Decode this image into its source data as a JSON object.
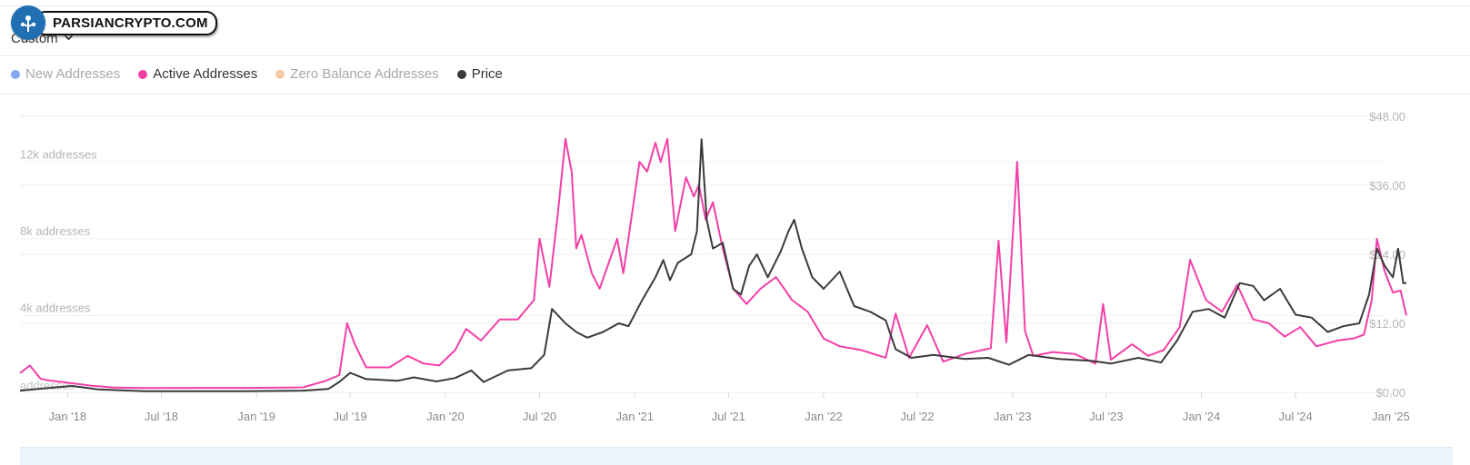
{
  "watermark": {
    "text": "PARSIANCRYPTO.COM"
  },
  "controls": {
    "range_label": "Custom"
  },
  "legend": [
    {
      "label": "New Addresses",
      "color": "#7b9cf0",
      "enabled": false
    },
    {
      "label": "Active Addresses",
      "color": "#f43fa6",
      "enabled": true
    },
    {
      "label": "Zero Balance Addresses",
      "color": "#f6c39a",
      "enabled": false
    },
    {
      "label": "Price",
      "color": "#3a3a3a",
      "enabled": true
    }
  ],
  "chart_data": {
    "type": "line",
    "x_ticks": [
      "Jan '18",
      "Jul '18",
      "Jan '19",
      "Jul '19",
      "Jan '20",
      "Jul '20",
      "Jan '21",
      "Jul '21",
      "Jan '22",
      "Jul '22",
      "Jan '23",
      "Jul '23",
      "Jan '24",
      "Jul '24",
      "Jan '25"
    ],
    "x_start": "2017-10-01",
    "x_end": "2025-01-31",
    "y_left": {
      "ticks": [
        4000,
        8000,
        12000
      ],
      "tick_labels": [
        "4k addresses",
        "8k addresses",
        "12k addresses"
      ],
      "bottom_label": "addresses",
      "range": [
        0,
        14000
      ]
    },
    "y_right": {
      "ticks": [
        0,
        12,
        24,
        36,
        48
      ],
      "tick_labels": [
        "$0.00",
        "$12.00",
        "$24.00",
        "$36.00",
        "$48.00"
      ],
      "range": [
        0,
        48
      ]
    },
    "series": [
      {
        "name": "Active Addresses",
        "axis": "left",
        "color": "#f43fa6",
        "points": [
          [
            "2017-10-01",
            1000
          ],
          [
            "2017-10-20",
            1400
          ],
          [
            "2017-11-10",
            700
          ],
          [
            "2017-12-01",
            600
          ],
          [
            "2018-01-01",
            500
          ],
          [
            "2018-02-15",
            350
          ],
          [
            "2018-04-01",
            250
          ],
          [
            "2018-06-01",
            220
          ],
          [
            "2018-09-01",
            230
          ],
          [
            "2018-12-01",
            230
          ],
          [
            "2019-02-01",
            240
          ],
          [
            "2019-04-01",
            260
          ],
          [
            "2019-05-15",
            600
          ],
          [
            "2019-06-10",
            900
          ],
          [
            "2019-06-25",
            3600
          ],
          [
            "2019-07-10",
            2500
          ],
          [
            "2019-08-01",
            1300
          ],
          [
            "2019-09-15",
            1300
          ],
          [
            "2019-10-20",
            1900
          ],
          [
            "2019-11-20",
            1500
          ],
          [
            "2019-12-20",
            1400
          ],
          [
            "2020-01-20",
            2200
          ],
          [
            "2020-02-10",
            3300
          ],
          [
            "2020-03-10",
            2700
          ],
          [
            "2020-04-15",
            3800
          ],
          [
            "2020-05-20",
            3800
          ],
          [
            "2020-06-20",
            4800
          ],
          [
            "2020-07-01",
            8000
          ],
          [
            "2020-07-20",
            5500
          ],
          [
            "2020-08-05",
            9200
          ],
          [
            "2020-08-20",
            13200
          ],
          [
            "2020-09-01",
            11500
          ],
          [
            "2020-09-10",
            7500
          ],
          [
            "2020-09-20",
            8200
          ],
          [
            "2020-10-10",
            6200
          ],
          [
            "2020-10-25",
            5400
          ],
          [
            "2020-11-15",
            7000
          ],
          [
            "2020-11-28",
            8000
          ],
          [
            "2020-12-10",
            6200
          ],
          [
            "2020-12-25",
            9000
          ],
          [
            "2021-01-10",
            12000
          ],
          [
            "2021-01-25",
            11500
          ],
          [
            "2021-02-10",
            13000
          ],
          [
            "2021-02-20",
            12000
          ],
          [
            "2021-03-05",
            13200
          ],
          [
            "2021-03-20",
            8400
          ],
          [
            "2021-04-10",
            11200
          ],
          [
            "2021-04-25",
            10200
          ],
          [
            "2021-05-05",
            10800
          ],
          [
            "2021-05-18",
            9000
          ],
          [
            "2021-06-01",
            9900
          ],
          [
            "2021-06-20",
            7500
          ],
          [
            "2021-07-10",
            5400
          ],
          [
            "2021-08-05",
            4600
          ],
          [
            "2021-09-01",
            5400
          ],
          [
            "2021-10-01",
            6000
          ],
          [
            "2021-11-01",
            4800
          ],
          [
            "2021-12-01",
            4200
          ],
          [
            "2022-01-01",
            2800
          ],
          [
            "2022-02-01",
            2400
          ],
          [
            "2022-03-15",
            2200
          ],
          [
            "2022-05-01",
            1800
          ],
          [
            "2022-05-20",
            4100
          ],
          [
            "2022-06-15",
            1800
          ],
          [
            "2022-07-20",
            3500
          ],
          [
            "2022-08-20",
            1600
          ],
          [
            "2022-10-01",
            2000
          ],
          [
            "2022-11-20",
            2300
          ],
          [
            "2022-12-05",
            7900
          ],
          [
            "2022-12-20",
            2600
          ],
          [
            "2023-01-10",
            12000
          ],
          [
            "2023-01-25",
            3200
          ],
          [
            "2023-02-10",
            1900
          ],
          [
            "2023-03-20",
            2100
          ],
          [
            "2023-05-01",
            2000
          ],
          [
            "2023-06-10",
            1500
          ],
          [
            "2023-06-25",
            4600
          ],
          [
            "2023-07-10",
            1700
          ],
          [
            "2023-08-20",
            2500
          ],
          [
            "2023-09-20",
            1900
          ],
          [
            "2023-10-20",
            2200
          ],
          [
            "2023-11-20",
            3400
          ],
          [
            "2023-12-10",
            6900
          ],
          [
            "2024-01-10",
            4800
          ],
          [
            "2024-02-10",
            4200
          ],
          [
            "2024-03-10",
            5600
          ],
          [
            "2024-04-10",
            3800
          ],
          [
            "2024-05-10",
            3600
          ],
          [
            "2024-06-10",
            2900
          ],
          [
            "2024-07-10",
            3400
          ],
          [
            "2024-08-10",
            2400
          ],
          [
            "2024-09-20",
            2700
          ],
          [
            "2024-10-20",
            2800
          ],
          [
            "2024-11-10",
            3000
          ],
          [
            "2024-11-25",
            4800
          ],
          [
            "2024-12-05",
            8000
          ],
          [
            "2024-12-20",
            6300
          ],
          [
            "2025-01-05",
            5200
          ],
          [
            "2025-01-20",
            5300
          ],
          [
            "2025-01-31",
            4000
          ]
        ]
      },
      {
        "name": "Price",
        "axis": "right",
        "color": "#3a3a3a",
        "points": [
          [
            "2017-10-01",
            0.3
          ],
          [
            "2017-12-01",
            0.8
          ],
          [
            "2018-01-10",
            1.1
          ],
          [
            "2018-03-01",
            0.5
          ],
          [
            "2018-06-01",
            0.2
          ],
          [
            "2018-12-01",
            0.2
          ],
          [
            "2019-04-01",
            0.3
          ],
          [
            "2019-05-20",
            0.6
          ],
          [
            "2019-06-10",
            1.8
          ],
          [
            "2019-07-01",
            3.4
          ],
          [
            "2019-08-01",
            2.3
          ],
          [
            "2019-10-01",
            2.0
          ],
          [
            "2019-11-01",
            2.6
          ],
          [
            "2019-12-15",
            1.9
          ],
          [
            "2020-01-20",
            2.5
          ],
          [
            "2020-02-20",
            3.8
          ],
          [
            "2020-03-15",
            1.8
          ],
          [
            "2020-05-01",
            3.8
          ],
          [
            "2020-06-15",
            4.2
          ],
          [
            "2020-07-10",
            6.5
          ],
          [
            "2020-07-25",
            14.5
          ],
          [
            "2020-08-20",
            12.0
          ],
          [
            "2020-09-10",
            10.5
          ],
          [
            "2020-10-01",
            9.5
          ],
          [
            "2020-11-01",
            10.5
          ],
          [
            "2020-12-01",
            12.0
          ],
          [
            "2020-12-20",
            11.5
          ],
          [
            "2021-01-15",
            16.0
          ],
          [
            "2021-02-10",
            20.0
          ],
          [
            "2021-02-25",
            23.0
          ],
          [
            "2021-03-10",
            19.5
          ],
          [
            "2021-03-25",
            22.5
          ],
          [
            "2021-04-20",
            24.0
          ],
          [
            "2021-05-01",
            28.0
          ],
          [
            "2021-05-10",
            44.0
          ],
          [
            "2021-05-20",
            30.0
          ],
          [
            "2021-06-01",
            25.0
          ],
          [
            "2021-06-20",
            26.0
          ],
          [
            "2021-07-10",
            18.0
          ],
          [
            "2021-07-25",
            17.0
          ],
          [
            "2021-08-10",
            22.0
          ],
          [
            "2021-08-25",
            24.0
          ],
          [
            "2021-09-15",
            20.0
          ],
          [
            "2021-10-10",
            24.5
          ],
          [
            "2021-10-25",
            28.0
          ],
          [
            "2021-11-05",
            30.0
          ],
          [
            "2021-11-20",
            25.0
          ],
          [
            "2021-12-10",
            20.0
          ],
          [
            "2022-01-01",
            18.0
          ],
          [
            "2022-02-01",
            21.0
          ],
          [
            "2022-03-01",
            15.0
          ],
          [
            "2022-04-01",
            14.0
          ],
          [
            "2022-05-01",
            12.5
          ],
          [
            "2022-05-20",
            7.5
          ],
          [
            "2022-06-20",
            6.0
          ],
          [
            "2022-08-01",
            6.5
          ],
          [
            "2022-10-01",
            5.8
          ],
          [
            "2022-11-15",
            6.0
          ],
          [
            "2022-12-25",
            4.8
          ],
          [
            "2023-02-01",
            6.5
          ],
          [
            "2023-04-01",
            5.8
          ],
          [
            "2023-06-01",
            5.5
          ],
          [
            "2023-07-10",
            5.0
          ],
          [
            "2023-09-01",
            6.0
          ],
          [
            "2023-10-15",
            5.2
          ],
          [
            "2023-11-15",
            9.0
          ],
          [
            "2023-12-15",
            14.0
          ],
          [
            "2024-01-15",
            14.5
          ],
          [
            "2024-02-15",
            13.0
          ],
          [
            "2024-03-15",
            19.0
          ],
          [
            "2024-04-10",
            18.5
          ],
          [
            "2024-05-01",
            16.0
          ],
          [
            "2024-06-01",
            18.0
          ],
          [
            "2024-07-01",
            13.5
          ],
          [
            "2024-08-01",
            13.0
          ],
          [
            "2024-09-01",
            10.5
          ],
          [
            "2024-10-01",
            11.5
          ],
          [
            "2024-11-01",
            12.0
          ],
          [
            "2024-11-20",
            17.0
          ],
          [
            "2024-12-05",
            25.0
          ],
          [
            "2024-12-20",
            22.0
          ],
          [
            "2025-01-05",
            20.0
          ],
          [
            "2025-01-15",
            25.0
          ],
          [
            "2025-01-25",
            19.0
          ],
          [
            "2025-01-31",
            19.0
          ]
        ]
      }
    ],
    "grid": true,
    "legend_position": "top-left"
  }
}
